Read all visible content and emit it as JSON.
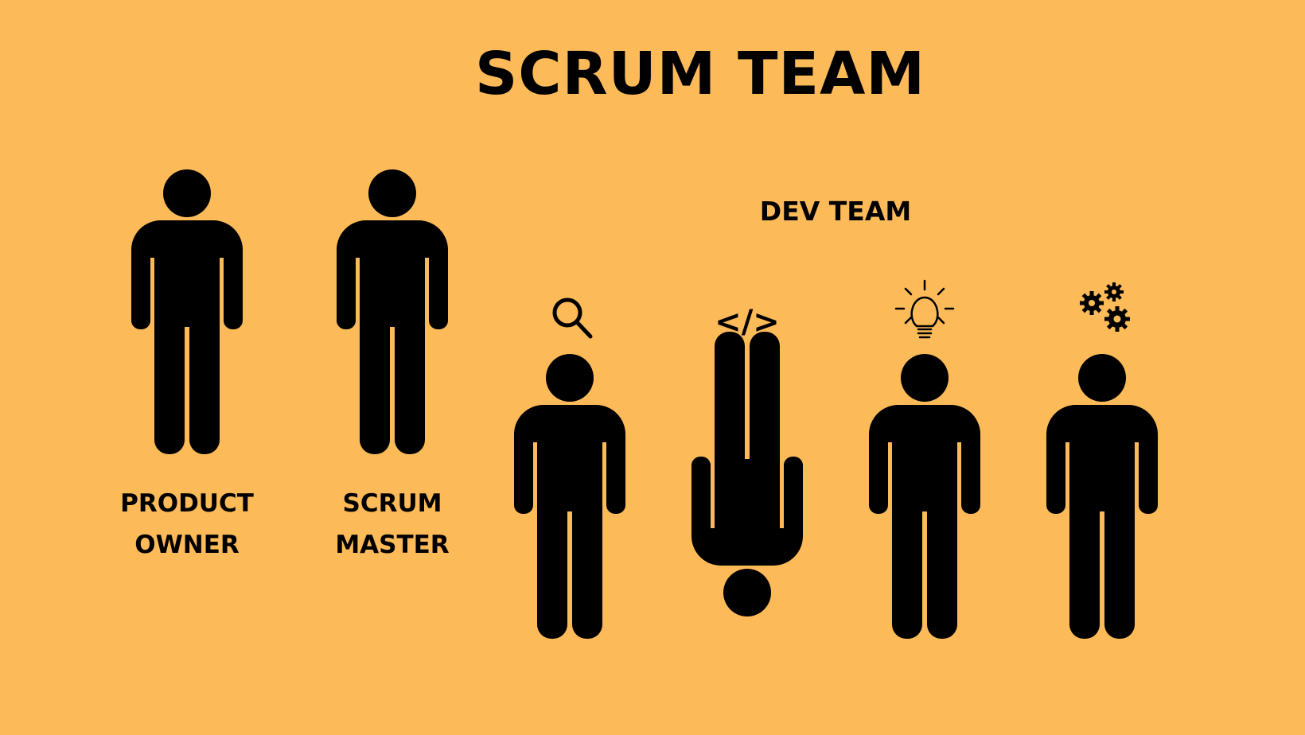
{
  "diagram": {
    "title": "SCRUM TEAM",
    "dev_team_label": "DEV TEAM",
    "background_color": "#FDBA58",
    "figure_color": "#000000",
    "roles": [
      {
        "id": "product-owner",
        "label_line1": "PRODUCT",
        "label_line2": "OWNER"
      },
      {
        "id": "scrum-master",
        "label_line1": "SCRUM",
        "label_line2": "MASTER"
      }
    ],
    "dev_members": [
      {
        "id": "analyst",
        "icon": "magnifier-icon",
        "orientation": "upright"
      },
      {
        "id": "coder",
        "icon": "code-brackets-icon",
        "icon_text": "</>",
        "orientation": "upside-down"
      },
      {
        "id": "innovator",
        "icon": "lightbulb-icon",
        "orientation": "upright"
      },
      {
        "id": "engineer",
        "icon": "gears-icon",
        "orientation": "upright"
      }
    ]
  }
}
